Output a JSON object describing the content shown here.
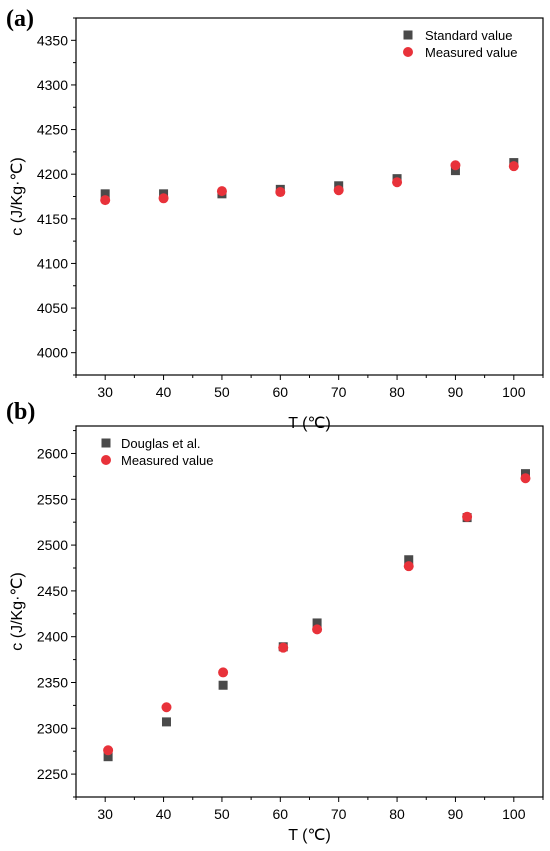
{
  "chart_data": [
    {
      "panel_label": "(a)",
      "type": "scatter",
      "xlabel": "T (℃)",
      "ylabel": "c (J/Kg·℃)",
      "xlim": [
        25,
        105
      ],
      "ylim": [
        3975,
        4375
      ],
      "xticks": [
        30,
        40,
        50,
        60,
        70,
        80,
        90,
        100
      ],
      "yticks": [
        4000,
        4050,
        4100,
        4150,
        4200,
        4250,
        4300,
        4350
      ],
      "legend_position": "top-right",
      "series": [
        {
          "name": "Standard value",
          "marker": "square",
          "color": "#4a4a4a",
          "x": [
            30,
            40,
            50,
            60,
            70,
            80,
            90,
            100
          ],
          "y": [
            4178,
            4178,
            4178,
            4183,
            4187,
            4195,
            4204,
            4213
          ]
        },
        {
          "name": "Measured value",
          "marker": "circle",
          "color": "#e8323a",
          "x": [
            30,
            40,
            50,
            60,
            70,
            80,
            90,
            100
          ],
          "y": [
            4171,
            4173,
            4181,
            4180,
            4182,
            4191,
            4210,
            4209
          ]
        }
      ]
    },
    {
      "panel_label": "(b)",
      "type": "scatter",
      "xlabel": "T (℃)",
      "ylabel": "c (J/Kg·℃)",
      "xlim": [
        25,
        105
      ],
      "ylim": [
        2225,
        2630
      ],
      "xticks": [
        30,
        40,
        50,
        60,
        70,
        80,
        90,
        100
      ],
      "yticks": [
        2250,
        2300,
        2350,
        2400,
        2450,
        2500,
        2550,
        2600
      ],
      "legend_position": "top-left",
      "series": [
        {
          "name": "Douglas et al.",
          "marker": "square",
          "color": "#4a4a4a",
          "x": [
            30.5,
            40.5,
            50.2,
            60.5,
            66.3,
            82,
            92,
            102
          ],
          "y": [
            2269,
            2307,
            2347,
            2389,
            2415,
            2484,
            2530,
            2578
          ]
        },
        {
          "name": "Measured value",
          "marker": "circle",
          "color": "#e8323a",
          "x": [
            30.5,
            40.5,
            50.2,
            60.5,
            66.3,
            82,
            92,
            102
          ],
          "y": [
            2276,
            2323,
            2361,
            2388,
            2408,
            2477,
            2531,
            2573
          ]
        }
      ]
    }
  ]
}
